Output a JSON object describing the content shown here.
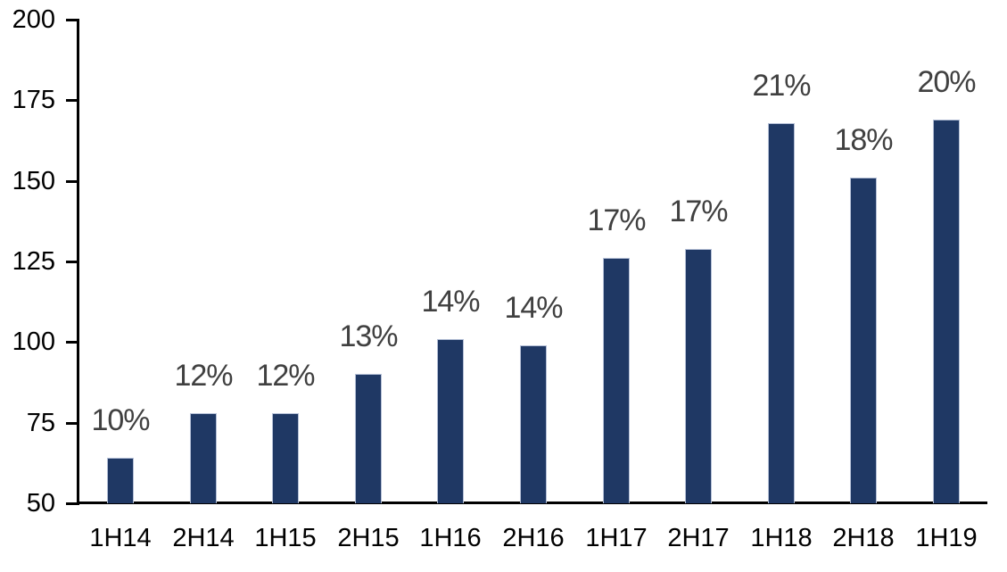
{
  "chart_data": {
    "type": "bar",
    "title": "",
    "xlabel": "",
    "ylabel": "",
    "categories": [
      "1H14",
      "2H14",
      "1H15",
      "2H15",
      "1H16",
      "2H16",
      "1H17",
      "2H17",
      "1H18",
      "2H18",
      "1H19"
    ],
    "values": [
      64,
      78,
      78,
      90,
      101,
      99,
      126,
      129,
      168,
      151,
      169
    ],
    "data_labels": [
      "10%",
      "12%",
      "12%",
      "13%",
      "14%",
      "14%",
      "17%",
      "17%",
      "21%",
      "18%",
      "20%"
    ],
    "ylim": [
      50,
      200
    ],
    "yticks": [
      50,
      75,
      100,
      125,
      150,
      175,
      200
    ],
    "grid": false,
    "legend": "none",
    "colors": {
      "bar_fill": "#1f3864",
      "bar_border": "#b4bfd6",
      "data_label": "#404040",
      "axis_text": "#000000",
      "axis_line": "#000000",
      "background": "#ffffff"
    }
  }
}
